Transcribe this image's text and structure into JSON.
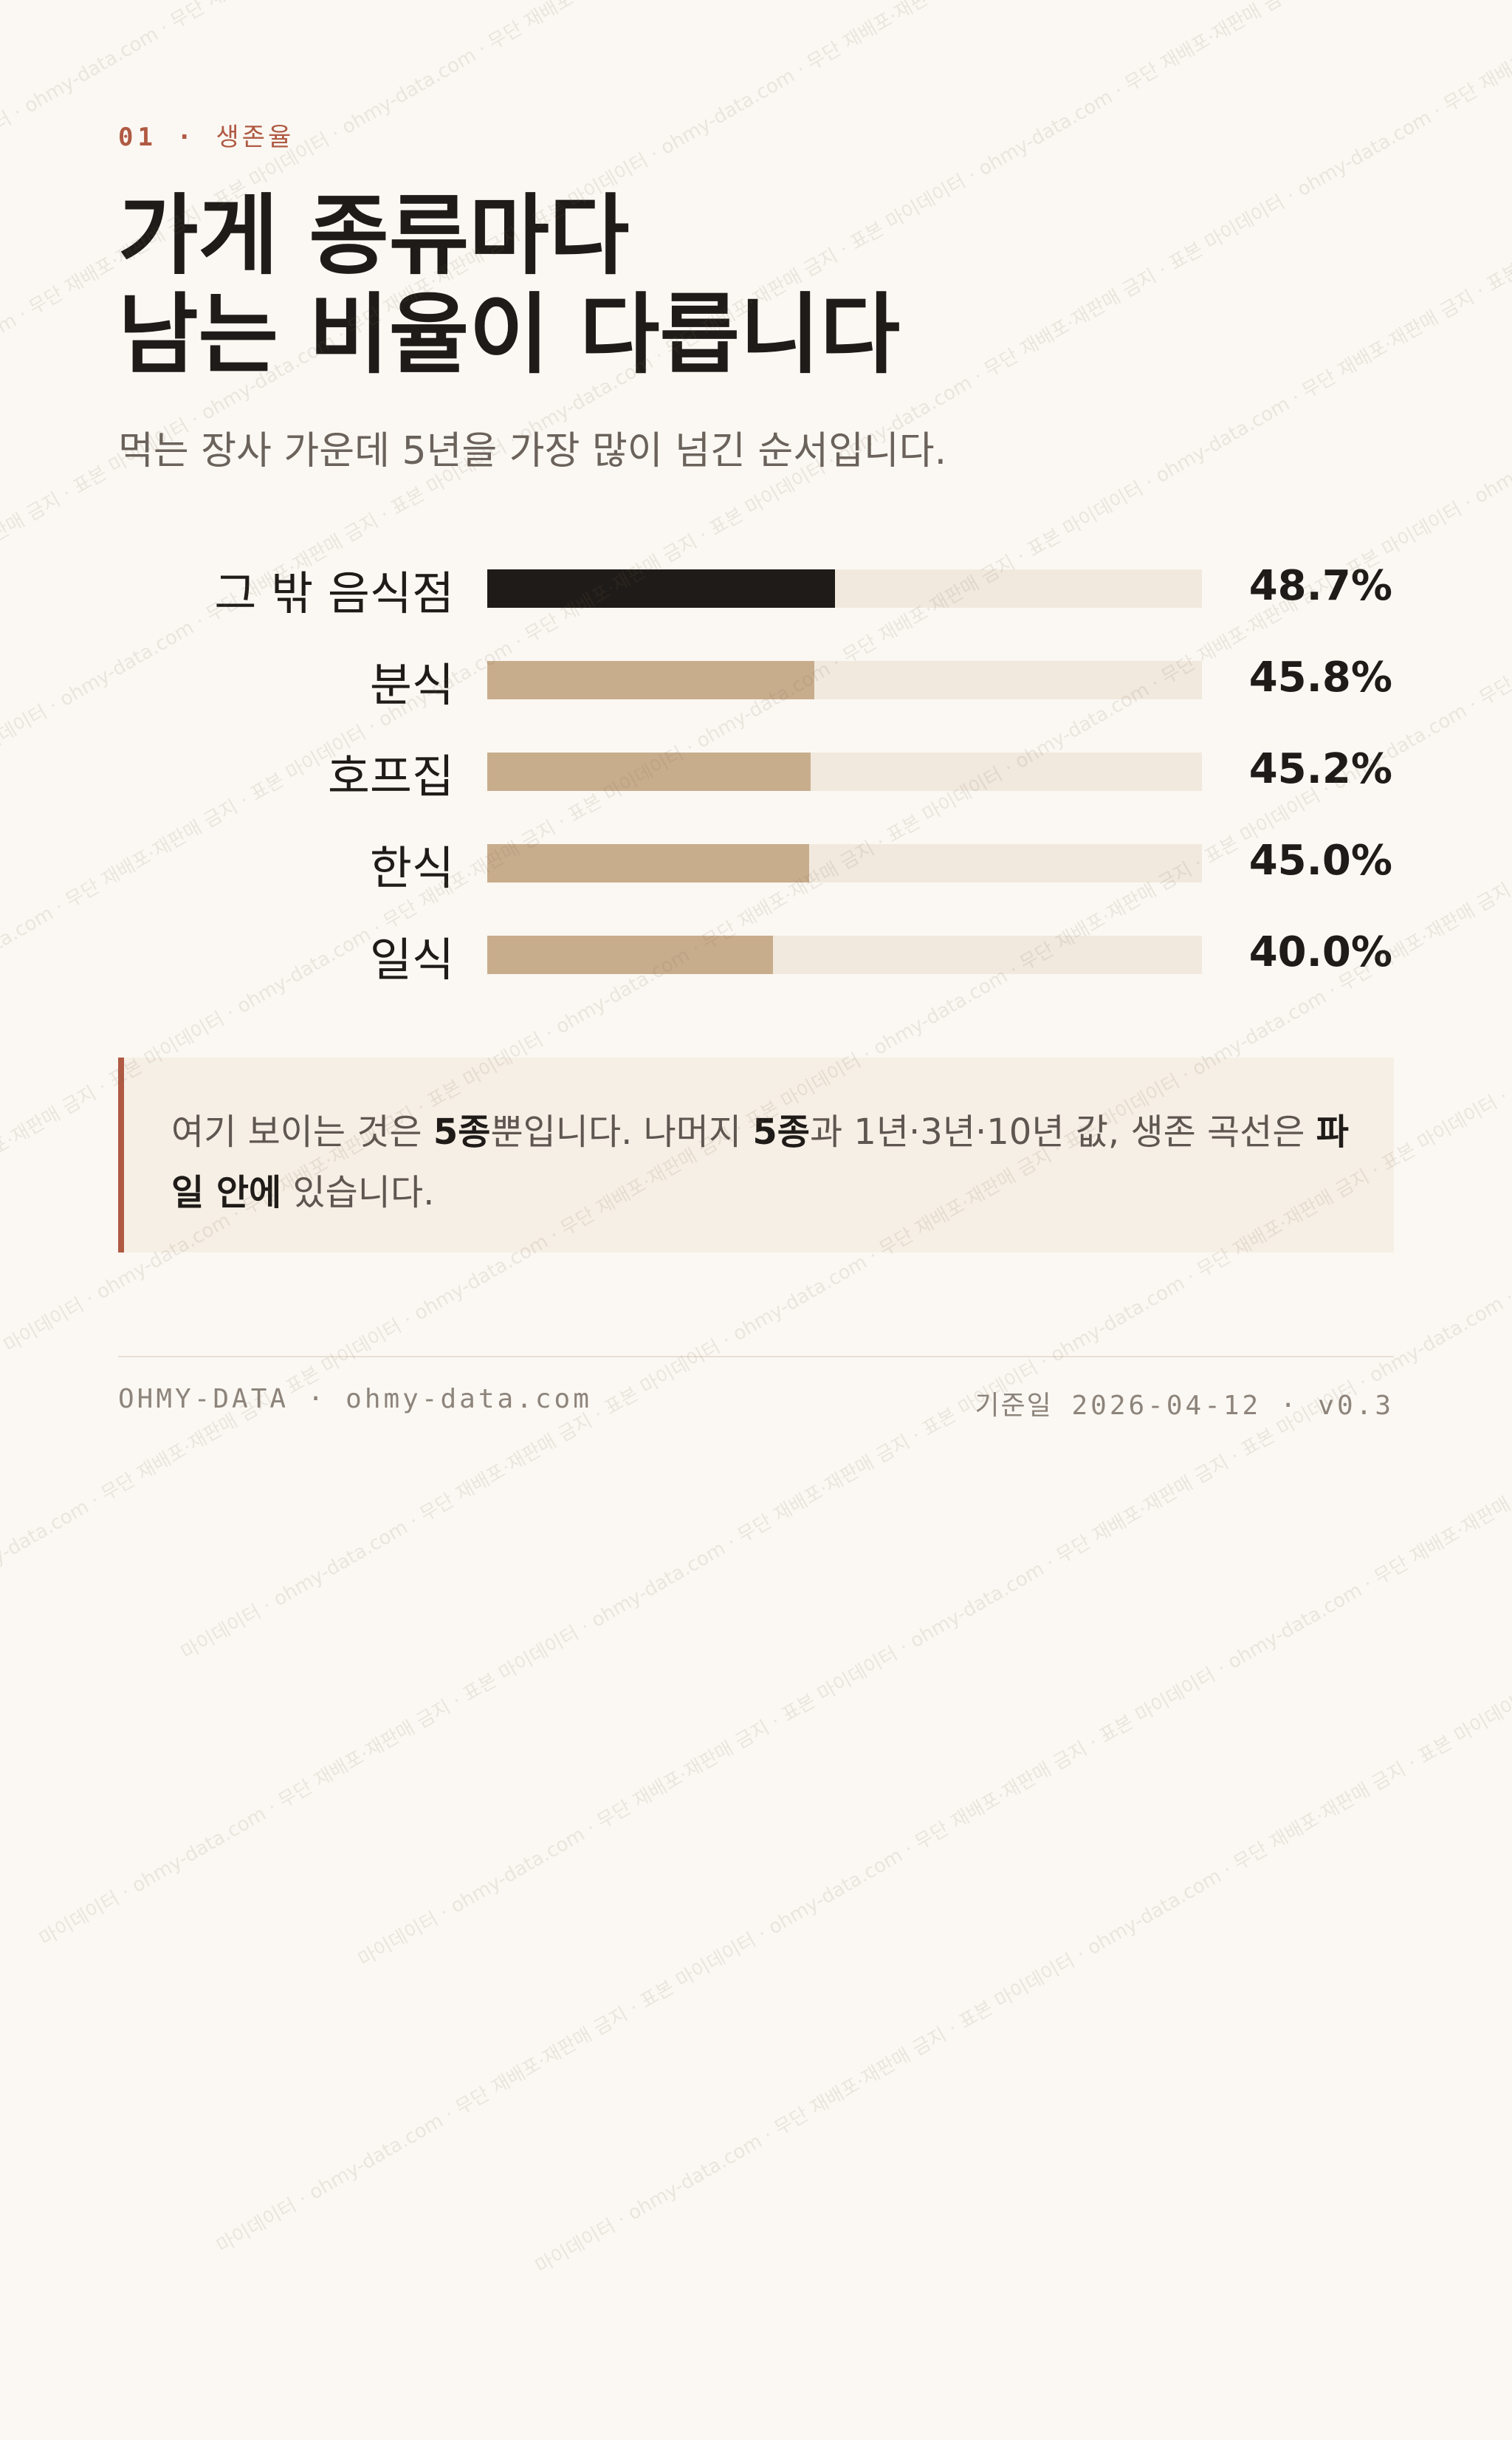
{
  "header": {
    "section_number": "01",
    "separator": "·",
    "section_label": "생존율",
    "title_line1": "가게 종류마다",
    "title_line2": "남는 비율이 다릅니다",
    "subtitle": "먹는 장사 가운데 5년을 가장 많이 넘긴 순서입니다."
  },
  "chart_data": {
    "type": "bar",
    "orientation": "horizontal",
    "categories": [
      "그 밖 음식점",
      "분식",
      "호프집",
      "한식",
      "일식"
    ],
    "values": [
      48.7,
      45.8,
      45.2,
      45.0,
      40.0
    ],
    "value_labels": [
      "48.7%",
      "45.8%",
      "45.2%",
      "45.0%",
      "40.0%"
    ],
    "unit": "%",
    "xlim": [
      0,
      100
    ],
    "highlight_index": 0,
    "grid": false,
    "colors": {
      "highlight": "#1f1b18",
      "bar": "#c8ad8d",
      "track": "#f1e9de"
    }
  },
  "note": {
    "part1": "여기 보이는 것은 ",
    "bold1": "5종",
    "part2": "뿐입니다. 나머지 ",
    "bold2": "5종",
    "part3": "과 1년·3년·10년 값, 생존 곡선은 ",
    "bold3": "파일 안에",
    "part4": " 있습니다."
  },
  "footer": {
    "brand": "OHMY-DATA",
    "separator": "·",
    "site": "ohmy-data.com",
    "date_label": "기준일",
    "date": "2026-04-12",
    "version": "v0.3"
  },
  "watermark": {
    "text": "마이데이터 · ohmy-data.com · 무단 재배포·재판매 금지 · 표본"
  },
  "colors": {
    "background": "#fbf8f3",
    "accent": "#b05a43",
    "text": "#1f1b18",
    "muted": "#6a625b",
    "note_bg": "#f6efe5"
  }
}
